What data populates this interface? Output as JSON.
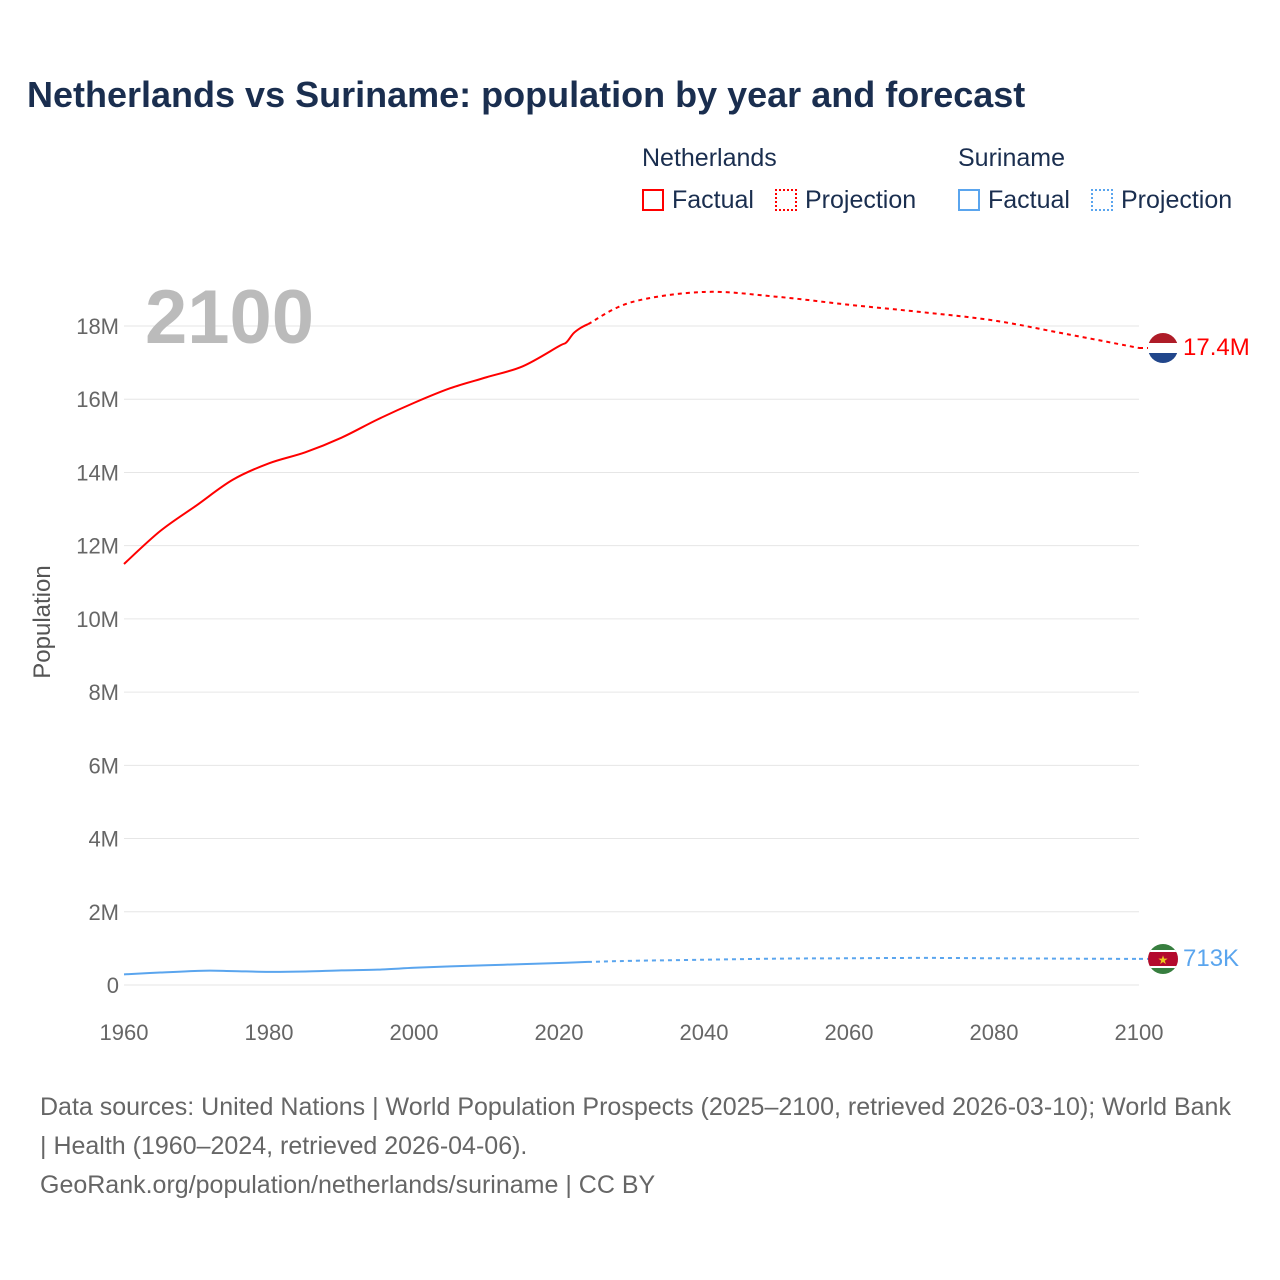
{
  "chart_data": {
    "type": "line",
    "title": "Netherlands vs Suriname: population by year and forecast",
    "ylabel": "Population",
    "xlabel": "",
    "xlim": [
      1960,
      2100
    ],
    "ylim": [
      0,
      19000000
    ],
    "x_ticks": [
      "1960",
      "1980",
      "2000",
      "2020",
      "2040",
      "2060",
      "2080",
      "2100"
    ],
    "y_ticks": [
      "0",
      "2M",
      "4M",
      "6M",
      "8M",
      "10M",
      "12M",
      "14M",
      "16M",
      "18M"
    ],
    "y_tick_values": [
      0,
      2,
      4,
      6,
      8,
      10,
      12,
      14,
      16,
      18
    ],
    "year_label": "2100",
    "legend": {
      "groups": [
        {
          "name": "Netherlands",
          "items": [
            "Factual",
            "Projection"
          ]
        },
        {
          "name": "Suriname",
          "items": [
            "Factual",
            "Projection"
          ]
        }
      ]
    },
    "series": [
      {
        "name": "Netherlands",
        "color": "#ff0000",
        "end_label": "17.4M",
        "factual": {
          "x": [
            1960,
            1965,
            1970,
            1975,
            1980,
            1985,
            1990,
            1995,
            2000,
            2005,
            2010,
            2015,
            2020,
            2021,
            2022,
            2023,
            2024
          ],
          "y_millions": [
            11.5,
            12.4,
            13.1,
            13.8,
            14.25,
            14.55,
            14.95,
            15.45,
            15.9,
            16.3,
            16.6,
            16.9,
            17.45,
            17.55,
            17.8,
            17.95,
            18.05
          ]
        },
        "projection": {
          "x": [
            2024,
            2030,
            2040,
            2050,
            2060,
            2070,
            2080,
            2090,
            2100
          ],
          "y_millions": [
            18.05,
            18.65,
            18.93,
            18.8,
            18.58,
            18.38,
            18.15,
            17.78,
            17.4
          ]
        }
      },
      {
        "name": "Suriname",
        "color": "#5aa5ee",
        "end_label": "713K",
        "factual": {
          "x": [
            1960,
            1965,
            1971,
            1975,
            1980,
            1985,
            1990,
            1995,
            2000,
            2005,
            2010,
            2015,
            2020,
            2024
          ],
          "y_millions": [
            0.29,
            0.34,
            0.39,
            0.38,
            0.36,
            0.37,
            0.4,
            0.42,
            0.47,
            0.51,
            0.54,
            0.57,
            0.6,
            0.63
          ]
        },
        "projection": {
          "x": [
            2024,
            2030,
            2040,
            2050,
            2060,
            2070,
            2080,
            2090,
            2100
          ],
          "y_millions": [
            0.63,
            0.66,
            0.69,
            0.72,
            0.73,
            0.74,
            0.73,
            0.72,
            0.713
          ]
        }
      }
    ]
  },
  "sources": "Data sources: United Nations | World Population Prospects (2025–2100, retrieved 2026-03-10); World Bank | Health (1960–2024, retrieved 2026-04-06).",
  "credit": "GeoRank.org/population/netherlands/suriname | CC BY"
}
